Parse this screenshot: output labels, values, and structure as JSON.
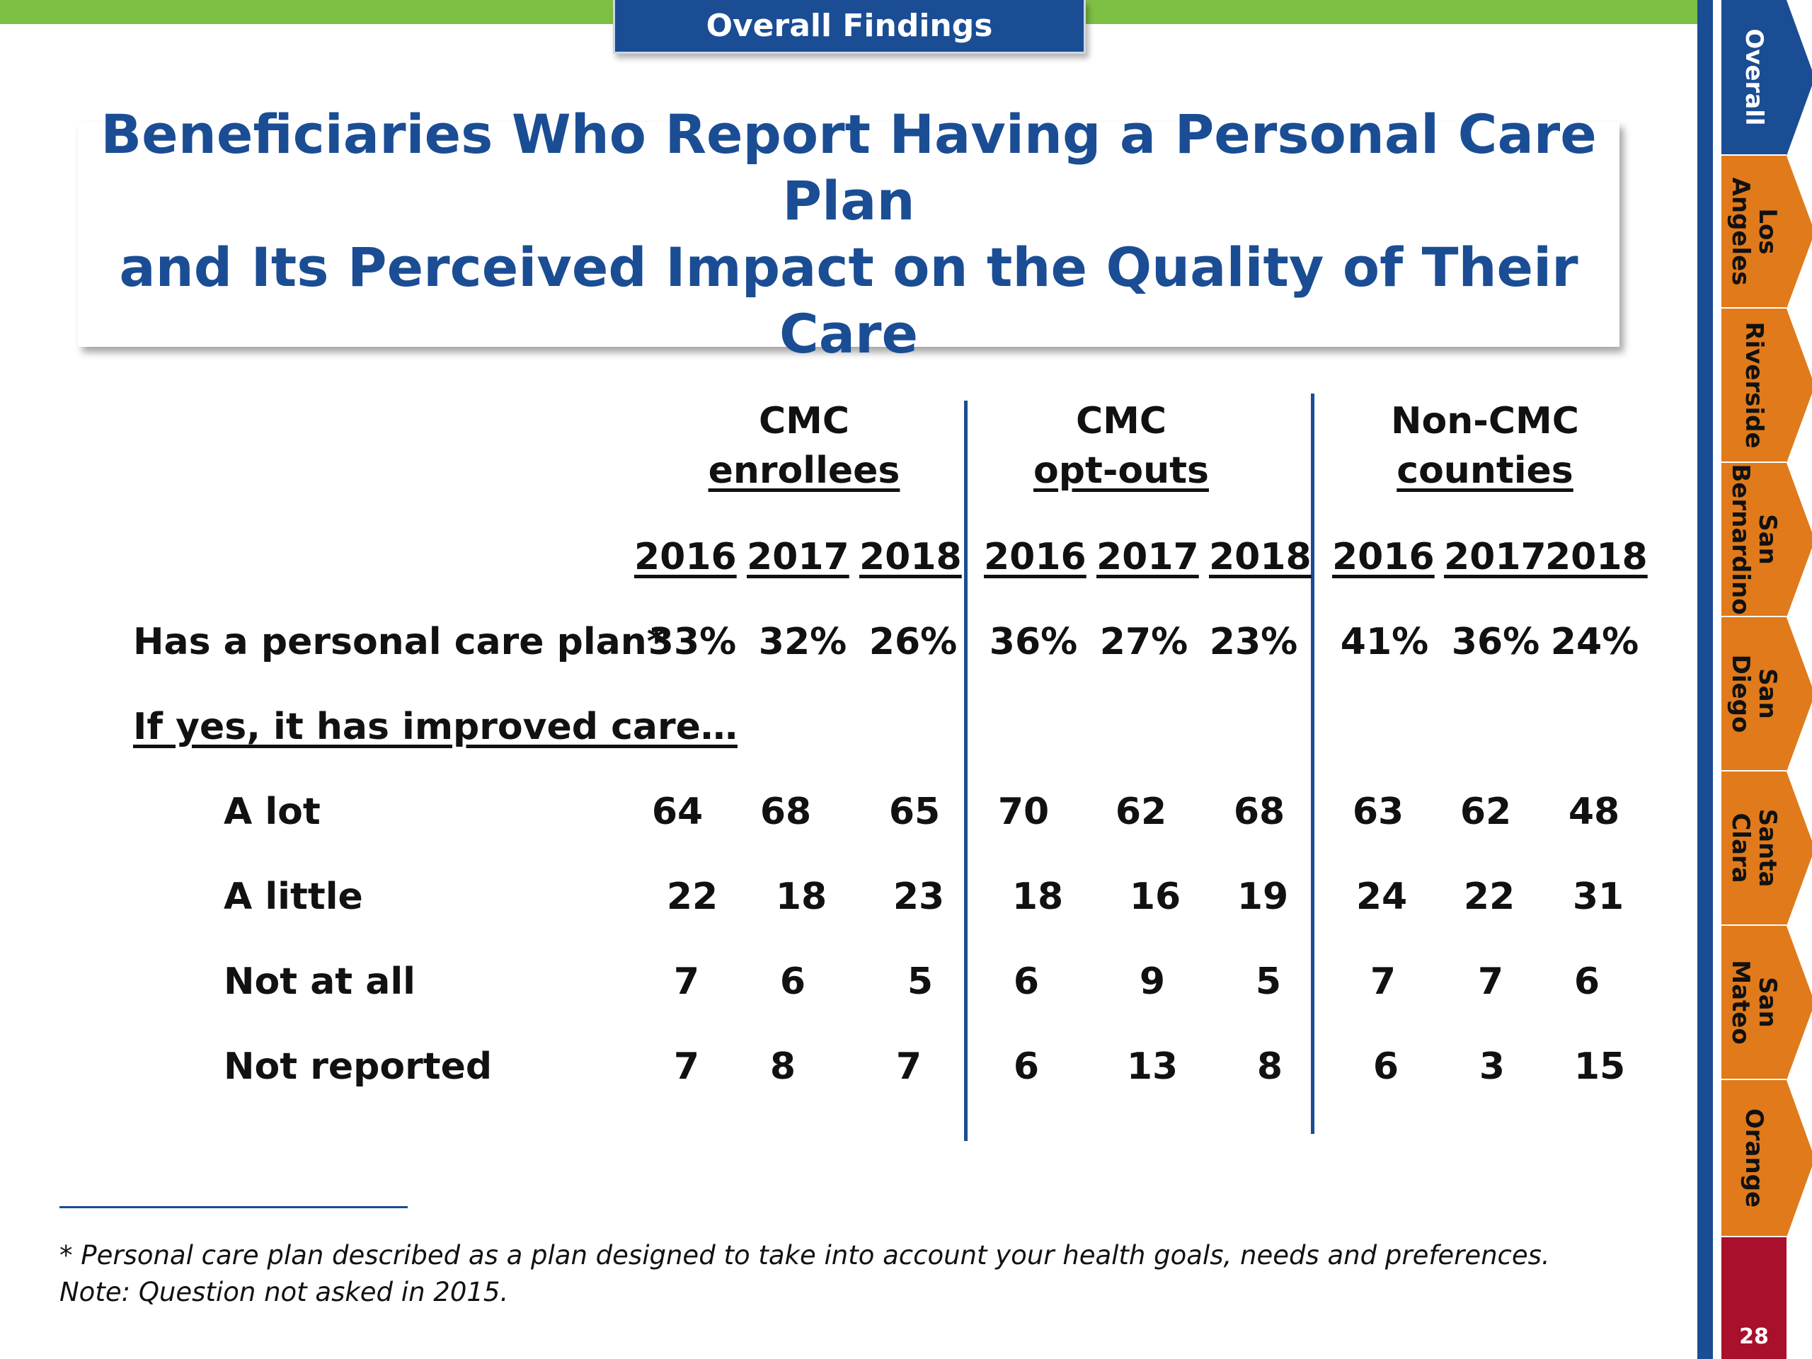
{
  "header": {
    "section_label": "Overall Findings"
  },
  "title": "Beneficiaries Who Report Having a Personal Care Plan\nand Its Perceived Impact on the Quality of Their Care",
  "table": {
    "groups": [
      {
        "line1": "CMC",
        "line2": "enrollees"
      },
      {
        "line1": "CMC",
        "line2": "opt-outs"
      },
      {
        "line1": "Non-CMC",
        "line2": "counties"
      }
    ],
    "years": [
      "2016",
      "2017",
      "2018",
      "2016",
      "2017",
      "2018",
      "2016",
      "2017",
      "2018"
    ],
    "has_plan": {
      "label": "Has a personal care plan*",
      "values": [
        "33%",
        "32%",
        "26%",
        "36%",
        "27%",
        "23%",
        "41%",
        "36%",
        "24%"
      ]
    },
    "subheading": "If yes, it has improved care…",
    "rows": [
      {
        "label": "A lot",
        "values": [
          "64",
          "68",
          "65",
          "70",
          "62",
          "68",
          "63",
          "62",
          "48"
        ]
      },
      {
        "label": "A little",
        "values": [
          "22",
          "18",
          "23",
          "18",
          "16",
          "19",
          "24",
          "22",
          "31"
        ]
      },
      {
        "label": "Not at all",
        "values": [
          "7",
          "6",
          "5",
          "6",
          "9",
          "5",
          "7",
          "7",
          "6"
        ]
      },
      {
        "label": "Not reported",
        "values": [
          "7",
          "8",
          "7",
          "6",
          "13",
          "8",
          "6",
          "3",
          "15"
        ]
      }
    ]
  },
  "footnotes": [
    "* Personal care plan described as a plan designed to take into account your health goals, needs and preferences.",
    "Note: Question not asked in 2015."
  ],
  "nav": {
    "tabs": [
      {
        "label": "Overall"
      },
      {
        "label": "Los\nAngeles"
      },
      {
        "label": "Riverside"
      },
      {
        "label": "San\nBernardino"
      },
      {
        "label": "San\nDiego"
      },
      {
        "label": "Santa\nClara"
      },
      {
        "label": "San\nMateo"
      },
      {
        "label": "Orange"
      }
    ],
    "page_number": "28"
  },
  "colors": {
    "brand_blue": "#1a4d94",
    "green_bar": "#7ec044",
    "nav_orange": "#e07a1b",
    "page_red": "#a8102b"
  }
}
